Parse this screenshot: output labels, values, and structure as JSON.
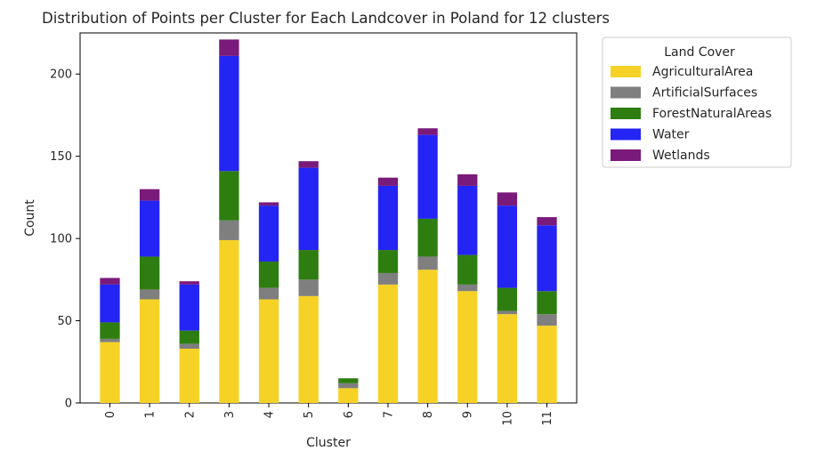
{
  "chart_data": {
    "type": "bar",
    "stacked": true,
    "title": "Distribution of Points per Cluster for Each Landcover in Poland for 12 clusters",
    "xlabel": "Cluster",
    "ylabel": "Count",
    "ylim": [
      0,
      225
    ],
    "yticks": [
      0,
      50,
      100,
      150,
      200
    ],
    "categories": [
      "0",
      "1",
      "2",
      "3",
      "4",
      "5",
      "6",
      "7",
      "8",
      "9",
      "10",
      "11"
    ],
    "legend": {
      "title": "Land Cover",
      "placement": "outside-top-right"
    },
    "series": [
      {
        "name": "AgriculturalArea",
        "color": "#f7d226",
        "values": [
          37,
          63,
          33,
          99,
          63,
          65,
          9,
          72,
          81,
          68,
          54,
          47
        ]
      },
      {
        "name": "ArtificialSurfaces",
        "color": "#7f7f7f",
        "values": [
          2,
          6,
          3,
          12,
          7,
          10,
          3,
          7,
          8,
          4,
          2,
          7
        ]
      },
      {
        "name": "ForestNaturalAreas",
        "color": "#2e7d10",
        "values": [
          10,
          20,
          8,
          30,
          16,
          18,
          3,
          14,
          23,
          18,
          14,
          14
        ]
      },
      {
        "name": "Water",
        "color": "#2424f5",
        "values": [
          23,
          34,
          28,
          70,
          34,
          50,
          0,
          39,
          51,
          42,
          50,
          40
        ]
      },
      {
        "name": "Wetlands",
        "color": "#7a1a7a",
        "values": [
          4,
          7,
          2,
          10,
          2,
          4,
          0,
          5,
          4,
          7,
          8,
          5
        ]
      }
    ]
  }
}
